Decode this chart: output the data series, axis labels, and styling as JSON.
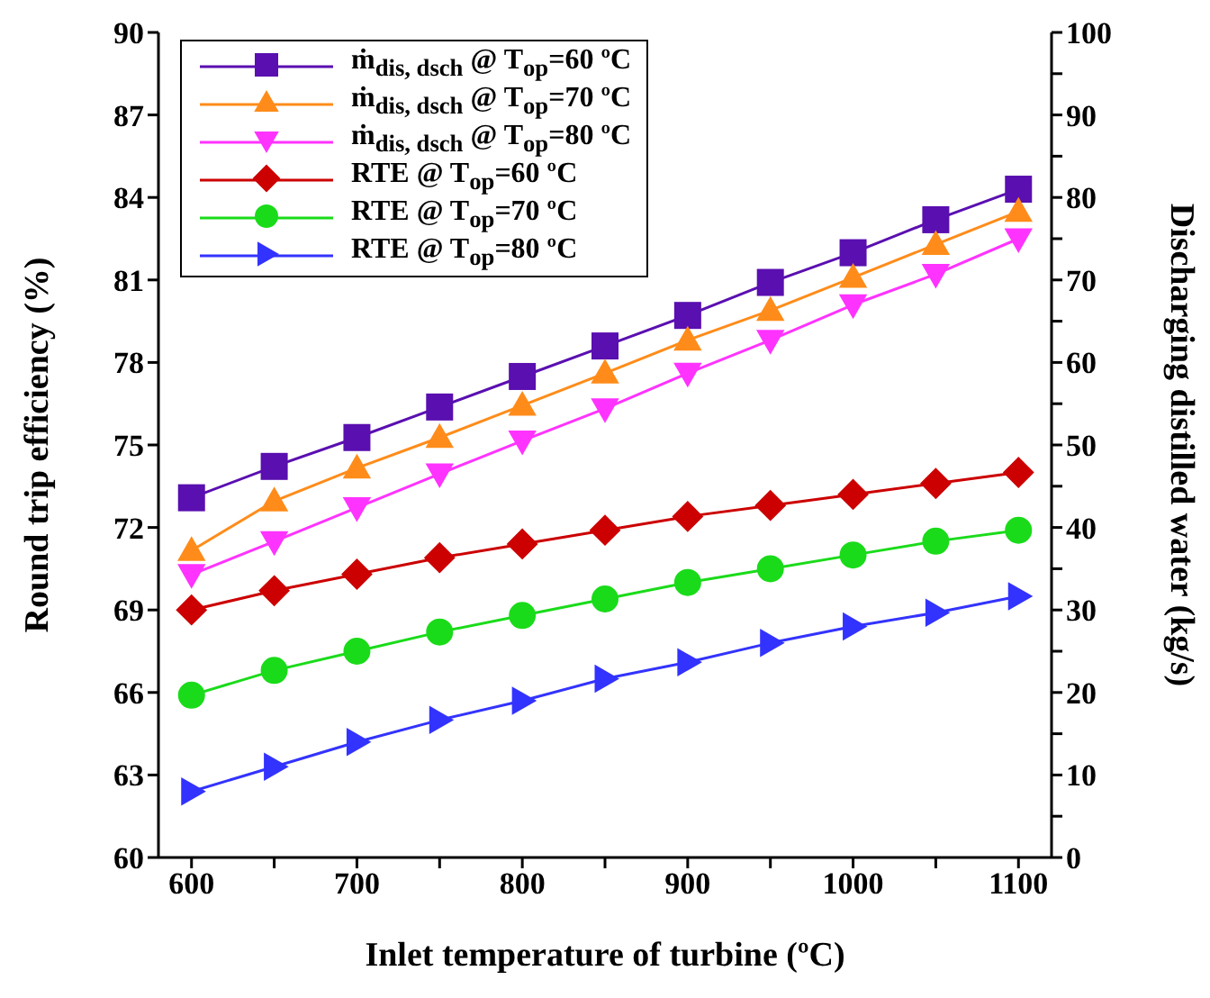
{
  "chart_data": {
    "type": "line",
    "xlabel": "Inlet temperature of turbine (ºC)",
    "ylabel": "Round trip efficiency (%)",
    "y2label": "Discharging distilled water (kg/s)",
    "x": [
      600,
      650,
      700,
      750,
      800,
      850,
      900,
      950,
      1000,
      1050,
      1100
    ],
    "xlim": [
      580,
      1120
    ],
    "xticks": [
      600,
      {
        "value": 650,
        "label": null
      },
      700,
      {
        "value": 750,
        "label": null
      },
      800,
      {
        "value": 850,
        "label": null
      },
      900,
      {
        "value": 950,
        "label": null
      },
      1000,
      {
        "value": 1050,
        "label": null
      },
      1100
    ],
    "ylim": [
      60,
      90
    ],
    "yticks": [
      60,
      63,
      66,
      69,
      72,
      75,
      78,
      81,
      84,
      87,
      90
    ],
    "y2lim": [
      0,
      100
    ],
    "y2ticks": [
      0,
      {
        "value": 5,
        "label": null
      },
      10,
      {
        "value": 15,
        "label": null
      },
      20,
      {
        "value": 25,
        "label": null
      },
      30,
      {
        "value": 35,
        "label": null
      },
      40,
      {
        "value": 45,
        "label": null
      },
      50,
      {
        "value": 55,
        "label": null
      },
      60,
      {
        "value": 65,
        "label": null
      },
      70,
      {
        "value": 75,
        "label": null
      },
      80,
      {
        "value": 85,
        "label": null
      },
      90,
      {
        "value": 95,
        "label": null
      },
      100
    ],
    "legend": "top left",
    "grid": false,
    "series": [
      {
        "name": "ṁ$_{dis, dsch}$ @ T$_{op}$=60 ºC",
        "color": "#5a0fb0",
        "axis": "y2",
        "marker": "square",
        "values": [
          43.6,
          47.4,
          50.9,
          54.6,
          58.3,
          62.0,
          65.7,
          69.7,
          73.3,
          77.3,
          81.0
        ]
      },
      {
        "name": "ṁ$_{dis, dsch}$ @ T$_{op}$=70 ºC",
        "color": "#ff8c1a",
        "axis": "y2",
        "marker": "triangle",
        "values": [
          37.2,
          43.2,
          47.2,
          50.9,
          54.8,
          58.7,
          62.7,
          66.3,
          70.3,
          74.3,
          78.3
        ]
      },
      {
        "name": "ṁ$_{dis, dsch}$ @ T$_{op}$=80 ºC",
        "color": "#ff33ff",
        "axis": "y2",
        "marker": "triangle-down",
        "values": [
          34.3,
          38.3,
          42.4,
          46.5,
          50.5,
          54.4,
          58.7,
          62.7,
          67.0,
          70.7,
          75.0
        ]
      },
      {
        "name": "RTE @ T$_{op}$=60 ºC",
        "color": "#cc0000",
        "marker": "diamond",
        "values": [
          69.0,
          69.7,
          70.3,
          70.9,
          71.4,
          71.9,
          72.4,
          72.8,
          73.2,
          73.6,
          74.0
        ]
      },
      {
        "name": "RTE @ T$_{op}$=70 ºC",
        "color": "#1adb1a",
        "marker": "circle",
        "values": [
          65.9,
          66.8,
          67.5,
          68.2,
          68.8,
          69.4,
          70.0,
          70.5,
          71.0,
          71.5,
          71.9
        ]
      },
      {
        "name": "RTE @ T$_{op}$=80 ºC",
        "color": "#3333ff",
        "marker": "triangle-right",
        "values": [
          62.4,
          63.3,
          64.2,
          65.0,
          65.7,
          66.5,
          67.1,
          67.8,
          68.4,
          68.9,
          69.5
        ]
      }
    ]
  }
}
